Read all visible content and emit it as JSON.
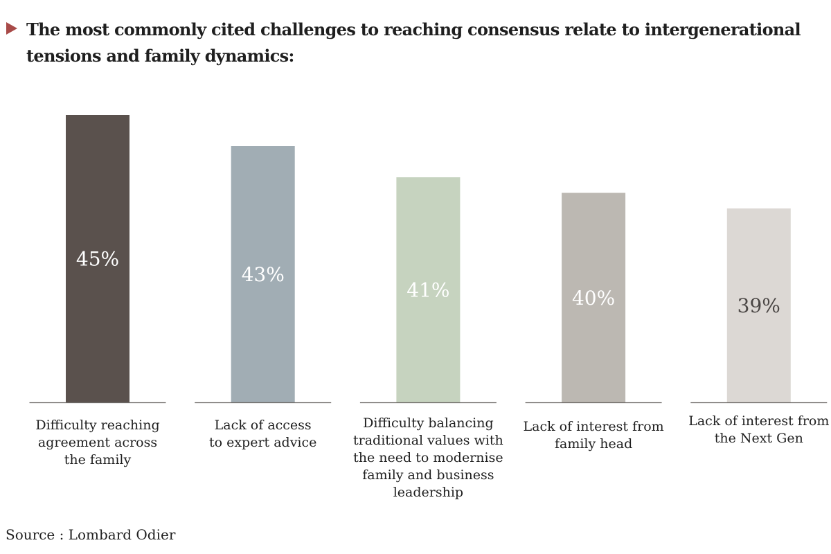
{
  "title": "The most commonly cited challenges to reaching consensus relate to intergenerational tensions and family dynamics:",
  "source": "Source : Lombard Odier",
  "chart_data": {
    "type": "bar",
    "title": "The most commonly cited challenges to reaching consensus relate to intergenerational tensions and family dynamics:",
    "categories": [
      "Difficulty reaching agreement across the family",
      "Lack of access to expert advice",
      "Difficulty balancing traditional values with the need to modernise family and business leadership",
      "Lack of interest from family head",
      "Lack of interest from the Next Gen"
    ],
    "category_lines": [
      [
        "Difficulty reaching",
        "agreement across",
        "the family"
      ],
      [
        "Lack of access",
        "to expert advice"
      ],
      [
        "Difficulty balancing",
        "traditional values with",
        "the need to modernise",
        "family and business",
        "leadership"
      ],
      [
        "Lack of interest from",
        "family head"
      ],
      [
        "Lack of interest from",
        "the Next Gen"
      ]
    ],
    "values": [
      45,
      43,
      41,
      40,
      39
    ],
    "value_labels": [
      "45%",
      "43%",
      "41%",
      "40%",
      "39%"
    ],
    "unit": "%",
    "colors": [
      "#5a514d",
      "#a1adb4",
      "#c6d3bf",
      "#bcb8b2",
      "#dcd8d4"
    ],
    "label_colors": [
      "#ffffff",
      "#ffffff",
      "#ffffff",
      "#ffffff",
      "#4a4644"
    ],
    "baseline_color": "#6e6a67",
    "xlabel": "",
    "ylabel": "",
    "grid": false,
    "legend": false
  }
}
